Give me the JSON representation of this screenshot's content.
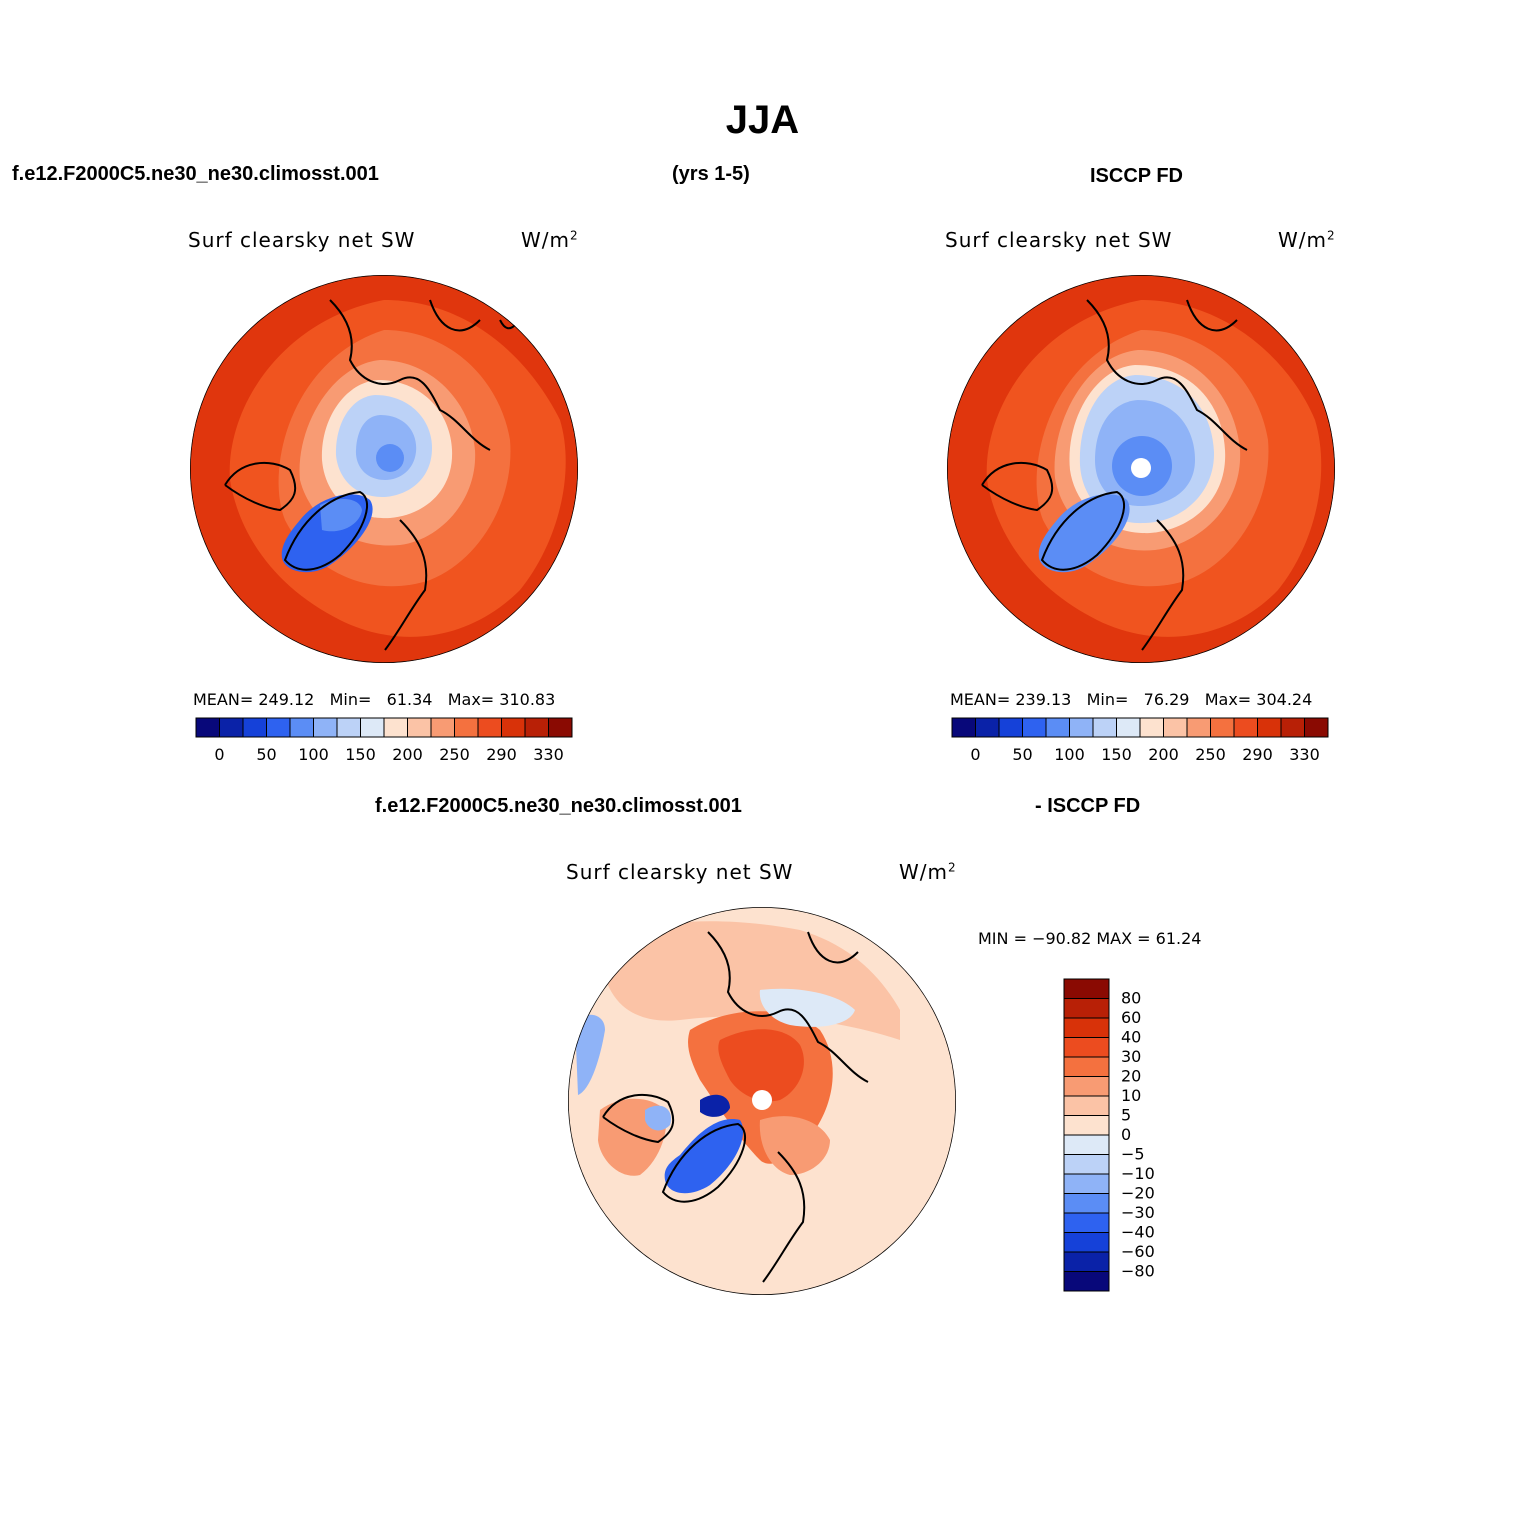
{
  "title": "JJA",
  "header": {
    "case_name": "f.e12.F2000C5.ne30_ne30.climosst.001",
    "years": "(yrs 1-5)",
    "obs_name": "ISCCP FD",
    "diff_case": "f.e12.F2000C5.ne30_ne30.climosst.001",
    "diff_obs": "- ISCCP FD"
  },
  "panels": {
    "model": {
      "variable": "Surf clearsky net SW",
      "units_base": "W/m",
      "units_exp": "2",
      "mean_label": "MEAN=",
      "mean": "249.12",
      "min_label": "Min=",
      "min": "61.34",
      "max_label": "Max=",
      "max": "310.83"
    },
    "obs": {
      "variable": "Surf clearsky net SW",
      "units_base": "W/m",
      "units_exp": "2",
      "mean_label": "MEAN=",
      "mean": "239.13",
      "min_label": "Min=",
      "min": "76.29",
      "max_label": "Max=",
      "max": "304.24"
    },
    "diff": {
      "variable": "Surf clearsky net SW",
      "units_base": "W/m",
      "units_exp": "2",
      "minmax_text": "MIN = −90.82  MAX =   61.24"
    }
  },
  "colorbar_main": {
    "colors": [
      "#08087a",
      "#0a22a8",
      "#1541d9",
      "#2e62f0",
      "#5b8df5",
      "#8fb3f7",
      "#bcd2f7",
      "#dde9f7",
      "#fde2cf",
      "#fbc3a6",
      "#f89b73",
      "#f4713f",
      "#ec4c1f",
      "#d83209",
      "#b82006",
      "#8a0a02"
    ],
    "tick_labels": [
      "0",
      "50",
      "100",
      "150",
      "200",
      "250",
      "290",
      "330"
    ]
  },
  "colorbar_diff": {
    "colors": [
      "#8a0a02",
      "#b82006",
      "#d83209",
      "#ec4c1f",
      "#f4713f",
      "#f89b73",
      "#fbc3a6",
      "#fde2cf",
      "#dde9f7",
      "#bcd2f7",
      "#8fb3f7",
      "#5b8df5",
      "#2e62f0",
      "#1541d9",
      "#0a22a8",
      "#08087a"
    ],
    "tick_labels": [
      "80",
      "60",
      "40",
      "30",
      "20",
      "10",
      "5",
      "0",
      "−5",
      "−10",
      "−20",
      "−30",
      "−40",
      "−60",
      "−80"
    ]
  }
}
